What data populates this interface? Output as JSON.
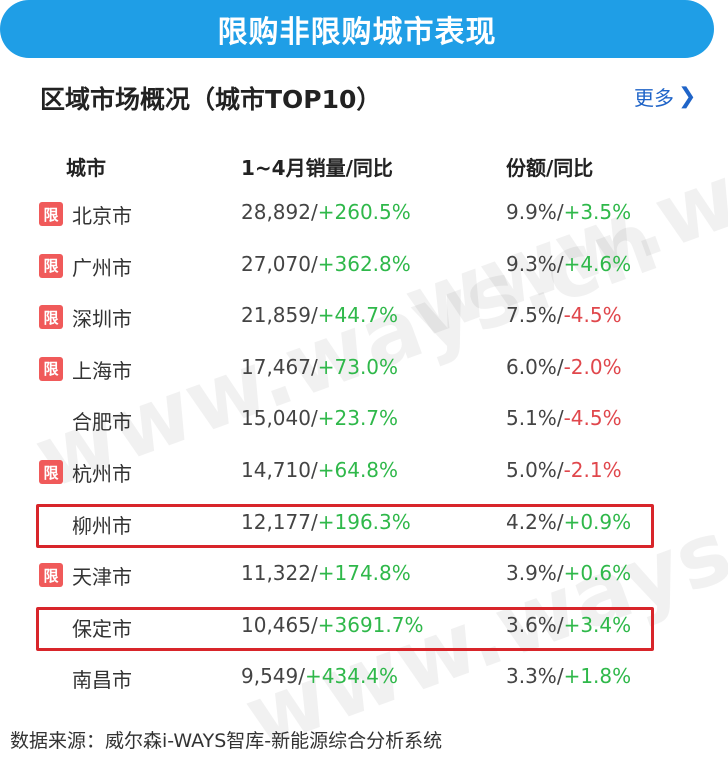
{
  "banner": {
    "title": "限购非限购城市表现"
  },
  "section": {
    "title": "区域市场概况（城市TOP10）",
    "more_label": "更多"
  },
  "table": {
    "headers": {
      "city": "城市",
      "sales": "1~4月销量/同比",
      "share": "份额/同比"
    },
    "restricted_badge": "限",
    "rows": [
      {
        "city": "北京市",
        "restricted": true,
        "sales": "28,892",
        "sales_yoy": "+260.5%",
        "share": "9.9%",
        "share_yoy": "+3.5%",
        "highlighted": false
      },
      {
        "city": "广州市",
        "restricted": true,
        "sales": "27,070",
        "sales_yoy": "+362.8%",
        "share": "9.3%",
        "share_yoy": "+4.6%",
        "highlighted": false
      },
      {
        "city": "深圳市",
        "restricted": true,
        "sales": "21,859",
        "sales_yoy": "+44.7%",
        "share": "7.5%",
        "share_yoy": "-4.5%",
        "highlighted": false
      },
      {
        "city": "上海市",
        "restricted": true,
        "sales": "17,467",
        "sales_yoy": "+73.0%",
        "share": "6.0%",
        "share_yoy": "-2.0%",
        "highlighted": false
      },
      {
        "city": "合肥市",
        "restricted": false,
        "sales": "15,040",
        "sales_yoy": "+23.7%",
        "share": "5.1%",
        "share_yoy": "-4.5%",
        "highlighted": false
      },
      {
        "city": "杭州市",
        "restricted": true,
        "sales": "14,710",
        "sales_yoy": "+64.8%",
        "share": "5.0%",
        "share_yoy": "-2.1%",
        "highlighted": false
      },
      {
        "city": "柳州市",
        "restricted": false,
        "sales": "12,177",
        "sales_yoy": "+196.3%",
        "share": "4.2%",
        "share_yoy": "+0.9%",
        "highlighted": true
      },
      {
        "city": "天津市",
        "restricted": true,
        "sales": "11,322",
        "sales_yoy": "+174.8%",
        "share": "3.9%",
        "share_yoy": "+0.6%",
        "highlighted": false
      },
      {
        "city": "保定市",
        "restricted": false,
        "sales": "10,465",
        "sales_yoy": "+3691.7%",
        "share": "3.6%",
        "share_yoy": "+3.4%",
        "highlighted": true
      },
      {
        "city": "南昌市",
        "restricted": false,
        "sales": "9,549",
        "sales_yoy": "+434.4%",
        "share": "3.3%",
        "share_yoy": "+1.8%",
        "highlighted": false
      }
    ]
  },
  "watermark": {
    "text": "www.ways.cn"
  },
  "source": {
    "text": "数据来源：威尔森i-WAYS智库-新能源综合分析系统"
  },
  "colors": {
    "banner": "#1f9ee6",
    "badge": "#f05a5a",
    "positive": "#2fb84a",
    "negative": "#e0474c",
    "highlight_border": "#d8252a",
    "link": "#1f64c8"
  }
}
